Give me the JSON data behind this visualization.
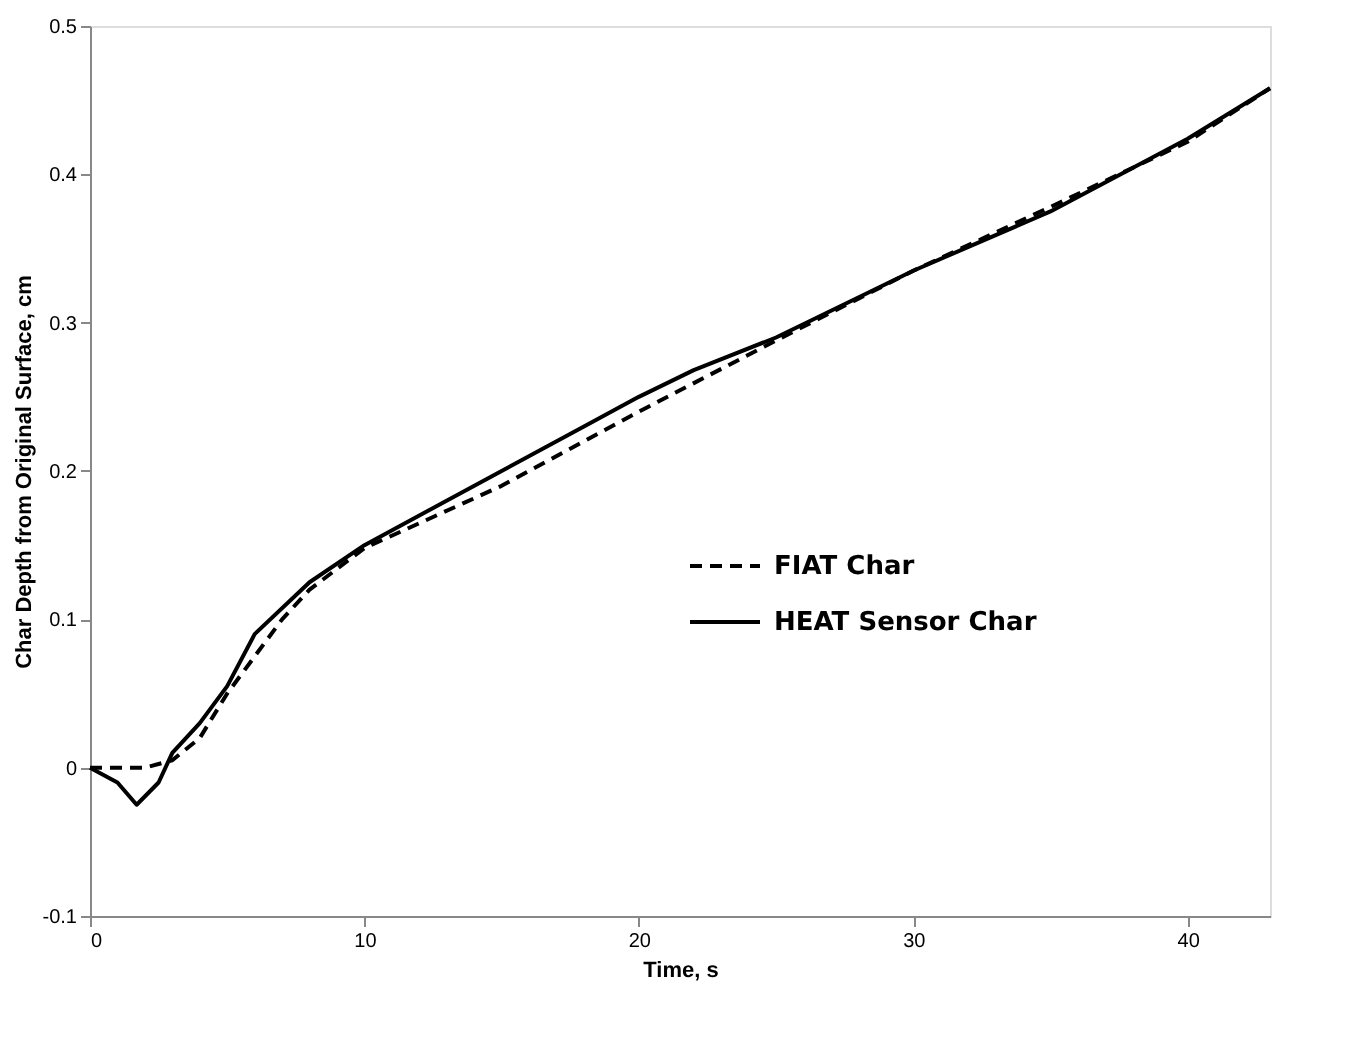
{
  "chart_data": {
    "type": "line",
    "xlabel": "Time, s",
    "ylabel": "Char Depth from Original Surface, cm",
    "xlim": [
      0,
      43
    ],
    "xticks": [
      0,
      10,
      20,
      30,
      40
    ],
    "ylim": [
      -0.1,
      0.5
    ],
    "yticks": [
      -0.1,
      0,
      0.1,
      0.2,
      0.3,
      0.4,
      0.5
    ],
    "grid": false,
    "legend": "right",
    "marker": "none",
    "series": [
      {
        "name": "FIAT Char",
        "color": "#000000",
        "line_style": "dashed",
        "x": [
          0,
          2,
          3,
          4,
          5,
          7,
          8,
          10,
          15,
          20,
          25,
          30,
          35,
          40,
          43
        ],
        "values": [
          0,
          0,
          0.005,
          0.02,
          0.05,
          0.1,
          0.12,
          0.148,
          0.19,
          0.24,
          0.288,
          0.335,
          0.378,
          0.422,
          0.458
        ]
      },
      {
        "name": "HEAT Sensor Char",
        "color": "#000000",
        "line_style": "solid",
        "x": [
          0,
          1,
          1.7,
          2.5,
          3,
          4,
          5,
          6,
          8,
          10,
          12,
          15,
          18,
          20,
          22,
          25,
          30,
          35,
          40,
          43
        ],
        "values": [
          0,
          -0.01,
          -0.025,
          -0.01,
          0.01,
          0.03,
          0.055,
          0.09,
          0.125,
          0.15,
          0.17,
          0.2,
          0.23,
          0.25,
          0.268,
          0.29,
          0.335,
          0.375,
          0.424,
          0.458
        ]
      }
    ]
  }
}
